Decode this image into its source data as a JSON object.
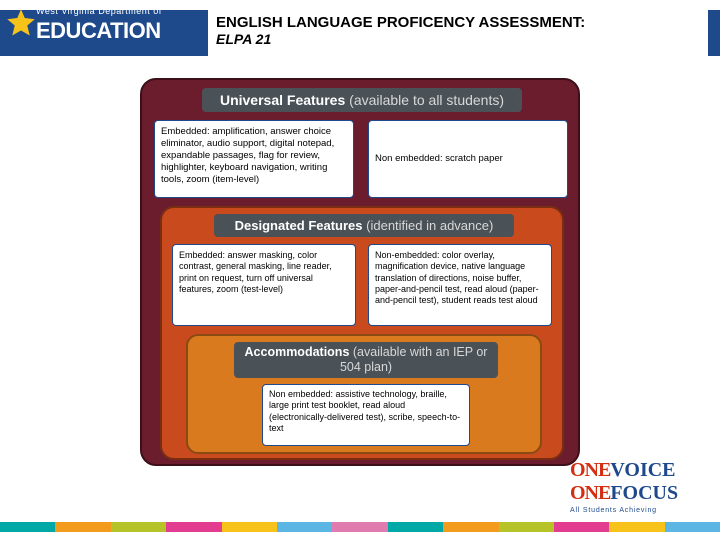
{
  "logo": {
    "dept": "West Virginia Department of",
    "edu": "EDUCATION"
  },
  "title": {
    "line1": "ENGLISH LANGUAGE PROFICENCY ASSESSMENT:",
    "line2": "ELPA 21"
  },
  "tiers": {
    "universal": {
      "label": "Universal Features",
      "paren": "(available to all students)",
      "embedded": "Embedded: amplification, answer choice eliminator, audio support, digital notepad, expandable passages, flag for review, highlighter, keyboard navigation, writing tools, zoom (item-level)",
      "nonembedded": "Non embedded: scratch paper",
      "colors": {
        "bg": "#6b1d2e",
        "border": "#3d1019"
      }
    },
    "designated": {
      "label": "Designated Features",
      "paren": "(identified in advance)",
      "embedded": "Embedded: answer masking, color contrast, general masking, line reader, print on request, turn off universal features, zoom (test-level)",
      "nonembedded": "Non-embedded: color overlay, magnification device, native language translation of directions, noise buffer, paper-and-pencil test, read aloud (paper-and-pencil test), student reads test aloud",
      "colors": {
        "bg": "#c84a1d",
        "border": "#7a2d11"
      }
    },
    "accommodations": {
      "label": "Accommodations",
      "paren": "(available with an IEP or 504 plan)",
      "nonembedded": "Non embedded: assistive technology, braille, large print test booklet, read aloud (electronically-delivered test), scribe, speech-to-text",
      "colors": {
        "bg": "#d97a1f",
        "border": "#8a4a12"
      }
    },
    "header_bg": "#4a5157",
    "box_border": "#1e4a8c"
  },
  "footer": {
    "one": "ONE",
    "voice": "VOICE",
    "focus": "FOCUS",
    "tag": "All Students Achieving",
    "colors": {
      "one": "#d42e12",
      "word": "#1e4a8c"
    }
  },
  "color_bar": [
    "#00a9a5",
    "#f29b1d",
    "#b6c42a",
    "#e33d8f",
    "#f7c21a",
    "#5cb6e4",
    "#e07bb0",
    "#00a9a5",
    "#f29b1d",
    "#b6c42a",
    "#e33d8f",
    "#f7c21a",
    "#5cb6e4"
  ]
}
